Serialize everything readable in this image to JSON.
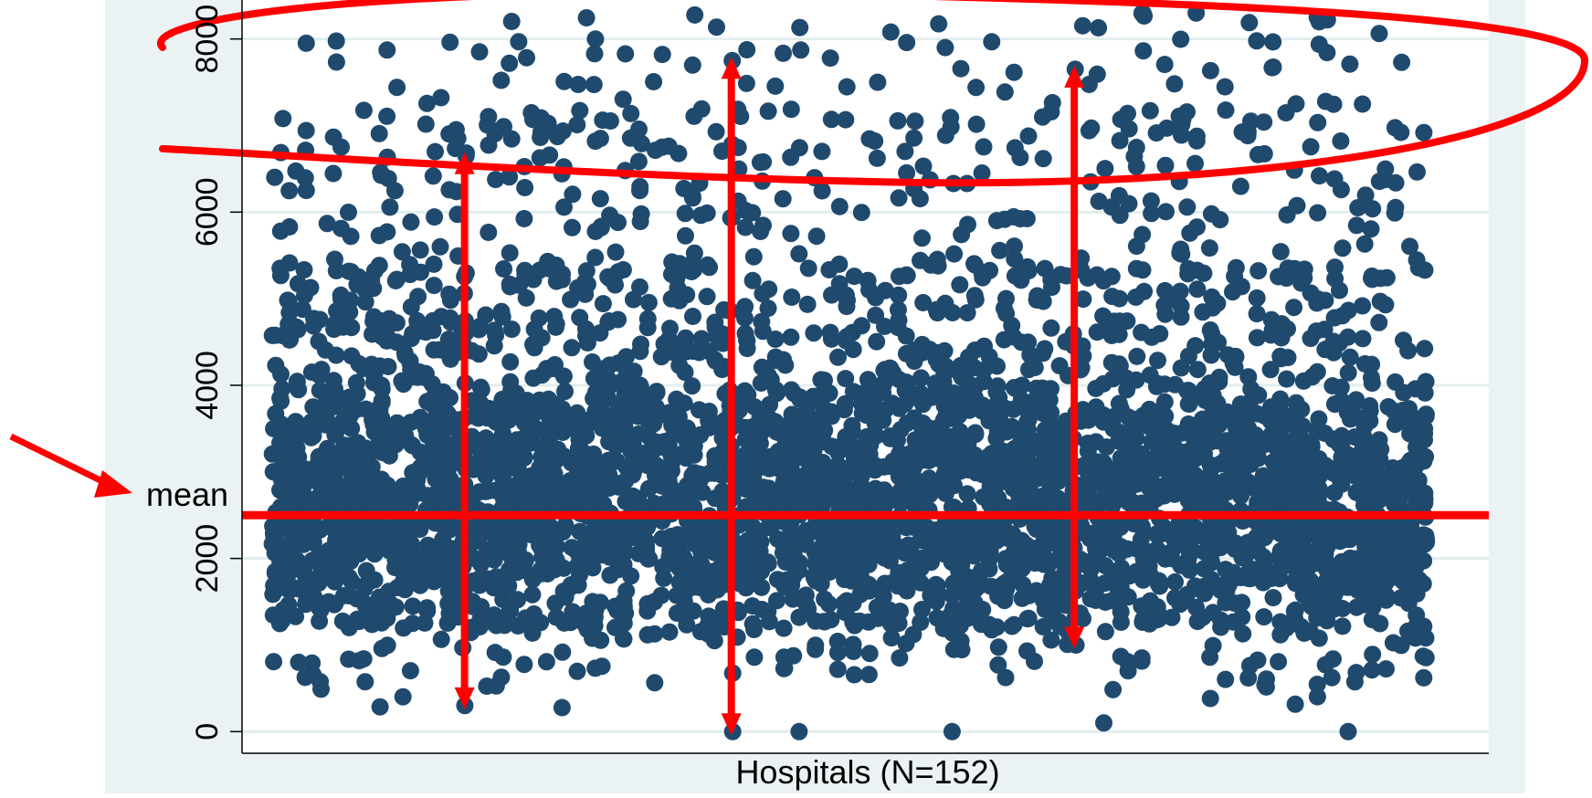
{
  "chart_data": {
    "type": "scatter",
    "title": "",
    "xlabel": "Hospitals (N=152)",
    "ylabel": "",
    "ylim": [
      -250,
      8450
    ],
    "xlim": [
      1,
      152
    ],
    "y_ticks": [
      0,
      2000,
      4000,
      6000,
      8000
    ],
    "x_ticks": [],
    "grid": "horizontal",
    "legend": "none",
    "mean": 2500,
    "mean_label": "mean",
    "point_count": 4200,
    "colors": {
      "points": "#1f4a6e",
      "annotation": "#ff0000",
      "outer_background": "#eaf2f3",
      "plot_background": "#ffffff",
      "gridline": "#e2eded"
    },
    "annotations": {
      "range_arrows": [
        {
          "hospital": 26,
          "y_min": 300,
          "y_max": 6650
        },
        {
          "hospital": 61,
          "y_min": 0,
          "y_max": 7750
        },
        {
          "hospital": 106,
          "y_min": 1000,
          "y_max": 7650
        }
      ],
      "outlier_region": {
        "y_from": 6500,
        "y_to": 8400
      },
      "mean_pointer": true
    }
  }
}
